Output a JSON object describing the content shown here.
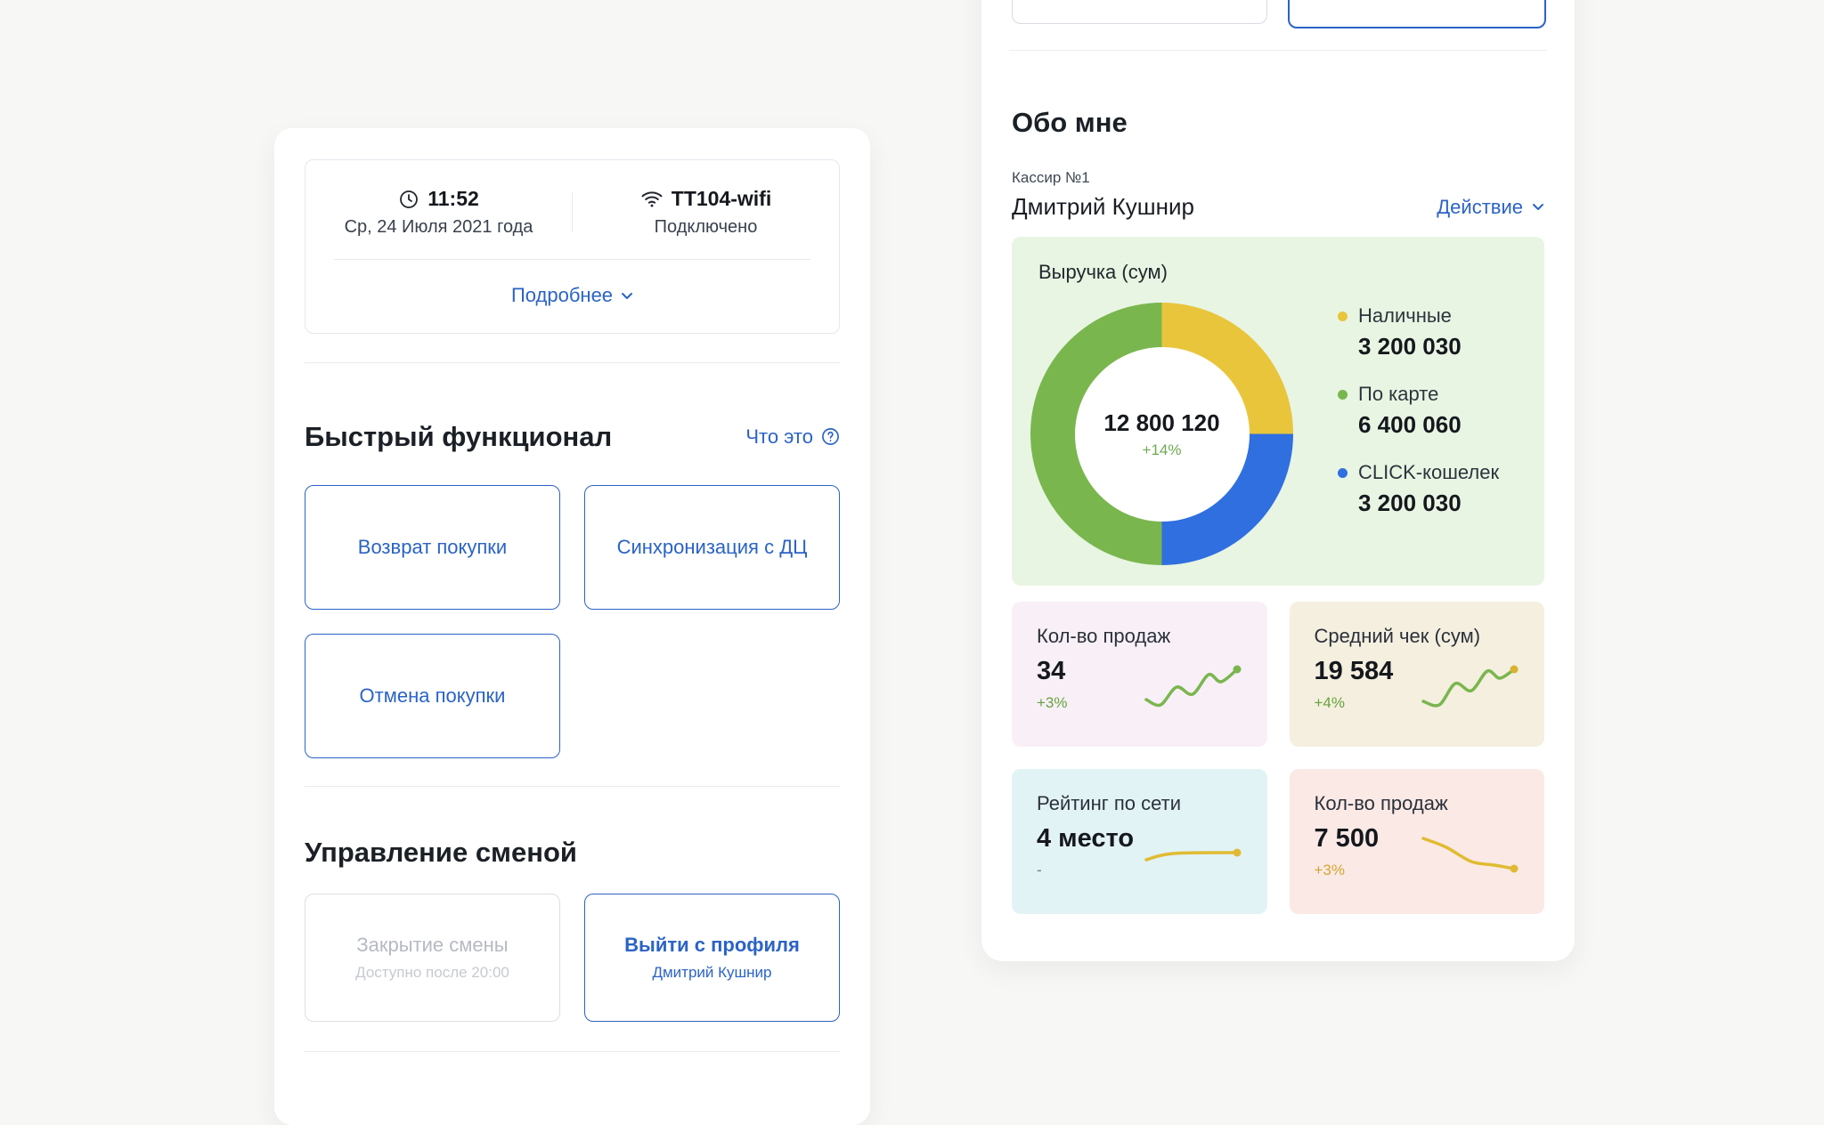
{
  "colors": {
    "accent": "#2b63c6",
    "green": "#7ab64e",
    "yellow": "#e9c53c",
    "blue": "#2f6fe0",
    "panel_green_bg": "#e8f5e3"
  },
  "left_card": {
    "status_box": {
      "time": "11:52",
      "date": "Ср, 24 Июля 2021 года",
      "network_name": "TT104-wifi",
      "network_status": "Подключено",
      "details_label": "Подробнее"
    },
    "quick": {
      "title": "Быстрый функционал",
      "help_label": "Что это",
      "buttons": [
        {
          "label": "Возврат покупки"
        },
        {
          "label": "Синхронизация с ДЦ"
        },
        {
          "label": "Отмена покупки"
        }
      ]
    },
    "shift": {
      "title": "Управление сменой",
      "close_button": {
        "label": "Закрытие смены",
        "sublabel": "Доступно после 20:00"
      },
      "logout_button": {
        "label": "Выйти с профиля",
        "sublabel": "Дмитрий Кушнир"
      }
    }
  },
  "right_card": {
    "about": {
      "title": "Обо мне",
      "role": "Кассир №1",
      "name": "Дмитрий Кушнир",
      "action_label": "Действие"
    },
    "revenue": {
      "title": "Выручка (сум)",
      "total": "12 800 120",
      "delta": "+14%",
      "legend": [
        {
          "label": "Наличные",
          "value": "3 200 030",
          "color": "#e9c53c"
        },
        {
          "label": "По карте",
          "value": "6 400 060",
          "color": "#7ab64e"
        },
        {
          "label": "CLICK-кошелек",
          "value": "3 200 030",
          "color": "#2f6fe0"
        }
      ]
    },
    "stats": [
      {
        "title": "Кол-во продаж",
        "value": "34",
        "delta": "+3%"
      },
      {
        "title": "Средний чек (сум)",
        "value": "19 584",
        "delta": "+4%"
      },
      {
        "title": "Рейтинг по сети",
        "value": "4 место",
        "delta": "-"
      },
      {
        "title": "Кол-во продаж",
        "value": "7 500",
        "delta": "+3%"
      }
    ]
  },
  "chart_data": [
    {
      "type": "pie",
      "subtype": "donut",
      "title": "Выручка (сум)",
      "center_label": "12 800 120",
      "center_delta": "+14%",
      "segments": [
        {
          "label": "Наличные",
          "value": 3200030,
          "color": "#e9c53c"
        },
        {
          "label": "CLICK-кошелек",
          "value": 3200030,
          "color": "#2f6fe0"
        },
        {
          "label": "По карте",
          "value": 6400060,
          "color": "#7ab64e"
        }
      ]
    },
    {
      "type": "line",
      "title": "Кол-во продаж",
      "current_value": 34,
      "delta": "+3%",
      "line_color": "#7ab64e",
      "dot_color": "#7ab64e",
      "points": [
        [
          4,
          44
        ],
        [
          20,
          50
        ],
        [
          38,
          30
        ],
        [
          56,
          38
        ],
        [
          74,
          16
        ],
        [
          88,
          24
        ],
        [
          106,
          10
        ]
      ]
    },
    {
      "type": "line",
      "title": "Средний чек (сум)",
      "current_value": 19584,
      "delta": "+4%",
      "line_color": "#7ab64e",
      "dot_color": "#d8b32e",
      "points": [
        [
          4,
          46
        ],
        [
          22,
          50
        ],
        [
          40,
          26
        ],
        [
          58,
          34
        ],
        [
          76,
          12
        ],
        [
          90,
          20
        ],
        [
          106,
          10
        ]
      ]
    },
    {
      "type": "line",
      "title": "Рейтинг по сети",
      "current_value": "4 место",
      "delta": "-",
      "line_color": "#e0bb32",
      "dot_color": "#e0bb32",
      "points": [
        [
          4,
          36
        ],
        [
          34,
          29
        ],
        [
          106,
          28
        ]
      ]
    },
    {
      "type": "line",
      "title": "Кол-во продаж",
      "current_value": 7500,
      "delta": "+3%",
      "line_color": "#e0bb32",
      "dot_color": "#e0bb32",
      "points": [
        [
          4,
          12
        ],
        [
          30,
          22
        ],
        [
          58,
          38
        ],
        [
          84,
          42
        ],
        [
          106,
          46
        ]
      ]
    }
  ]
}
